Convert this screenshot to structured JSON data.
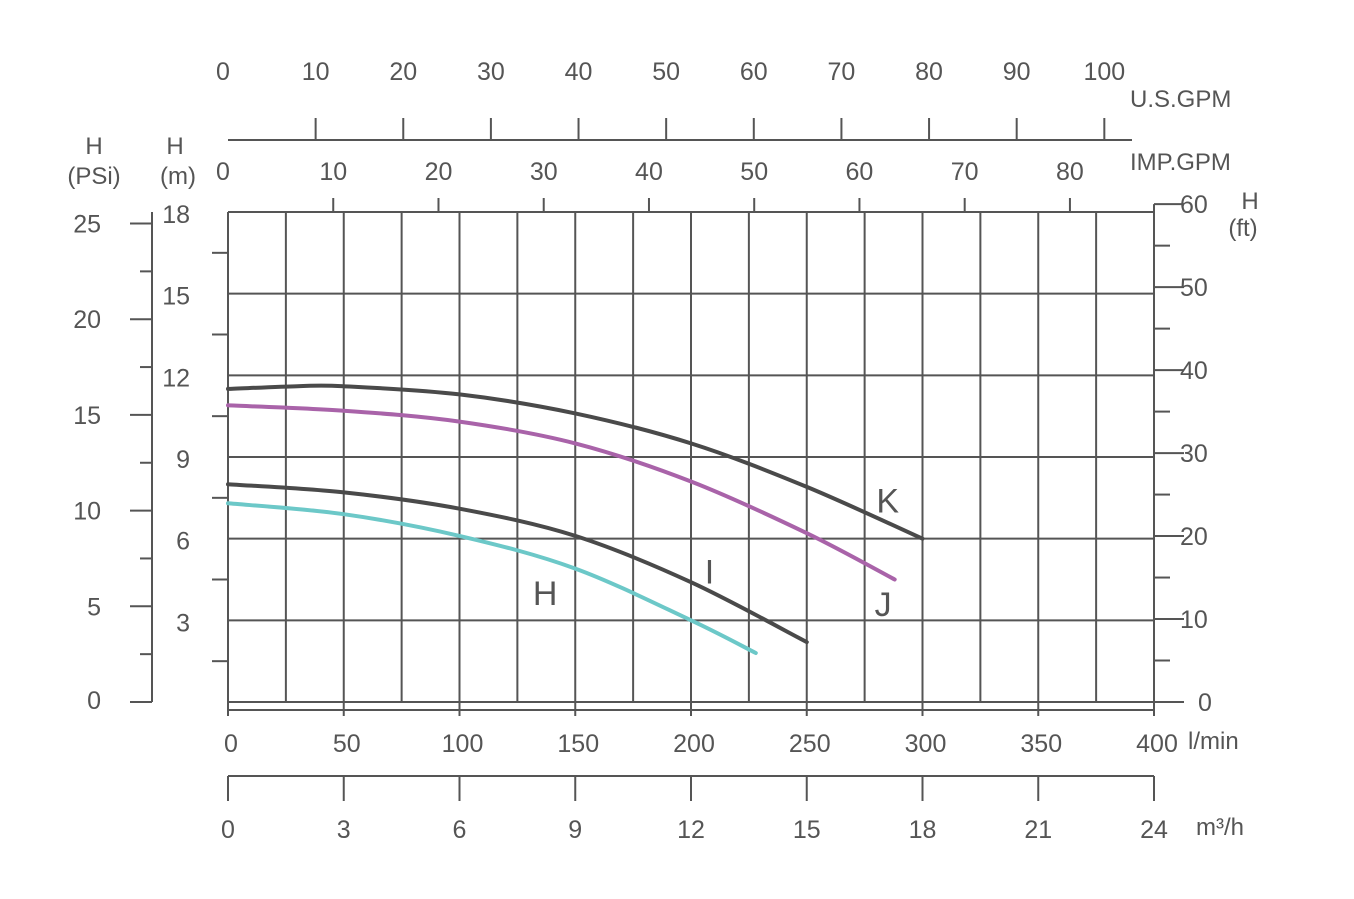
{
  "chart_data": {
    "type": "line",
    "title": "",
    "x_axes": {
      "lmin": {
        "unit": "l/min",
        "ticks": [
          0,
          50,
          100,
          150,
          200,
          250,
          300,
          350,
          400
        ],
        "range": [
          0,
          400
        ]
      },
      "m3h": {
        "unit": "m³/h",
        "ticks": [
          0,
          3,
          6,
          9,
          12,
          15,
          18,
          21,
          24
        ],
        "range": [
          0,
          24
        ]
      },
      "usgpm": {
        "unit": "U.S.GPM",
        "ticks": [
          0,
          10,
          20,
          30,
          40,
          50,
          60,
          70,
          80,
          90,
          100
        ]
      },
      "impgpm": {
        "unit": "IMP.GPM",
        "ticks": [
          0,
          10,
          20,
          30,
          40,
          50,
          60,
          70,
          80
        ]
      }
    },
    "y_axes": {
      "m": {
        "unit_line1": "H",
        "unit_line2": "(m)",
        "ticks": [
          3,
          6,
          9,
          12,
          15,
          18
        ],
        "range": [
          0,
          18
        ]
      },
      "psi": {
        "unit_line1": "H",
        "unit_line2": "(PSi)",
        "ticks": [
          0,
          5,
          10,
          15,
          20,
          25
        ]
      },
      "ft": {
        "unit_line1": "H",
        "unit_line2": "(ft)",
        "ticks": [
          0,
          10,
          20,
          30,
          40,
          50,
          60
        ]
      }
    },
    "grid": true,
    "series": [
      {
        "name": "H",
        "color": "#6cc8c8",
        "x": [
          0,
          50,
          100,
          150,
          200,
          228
        ],
        "y": [
          7.3,
          6.9,
          6.1,
          4.9,
          3.0,
          1.8
        ],
        "label_at": [
          137,
          4.0
        ]
      },
      {
        "name": "I",
        "color": "#4a4a4a",
        "x": [
          0,
          50,
          100,
          150,
          200,
          250
        ],
        "y": [
          8.0,
          7.7,
          7.1,
          6.1,
          4.4,
          2.2
        ],
        "label_at": [
          208,
          4.8
        ]
      },
      {
        "name": "J",
        "color": "#a963a9",
        "x": [
          0,
          50,
          100,
          150,
          200,
          250,
          288
        ],
        "y": [
          10.9,
          10.7,
          10.3,
          9.5,
          8.1,
          6.2,
          4.5
        ],
        "label_at": [
          283,
          3.6
        ]
      },
      {
        "name": "K",
        "color": "#4a4a4a",
        "x": [
          0,
          30,
          50,
          100,
          150,
          200,
          250,
          300
        ],
        "y": [
          11.5,
          11.6,
          11.6,
          11.3,
          10.6,
          9.5,
          7.9,
          6.0
        ],
        "label_at": [
          285,
          7.4
        ]
      }
    ]
  }
}
